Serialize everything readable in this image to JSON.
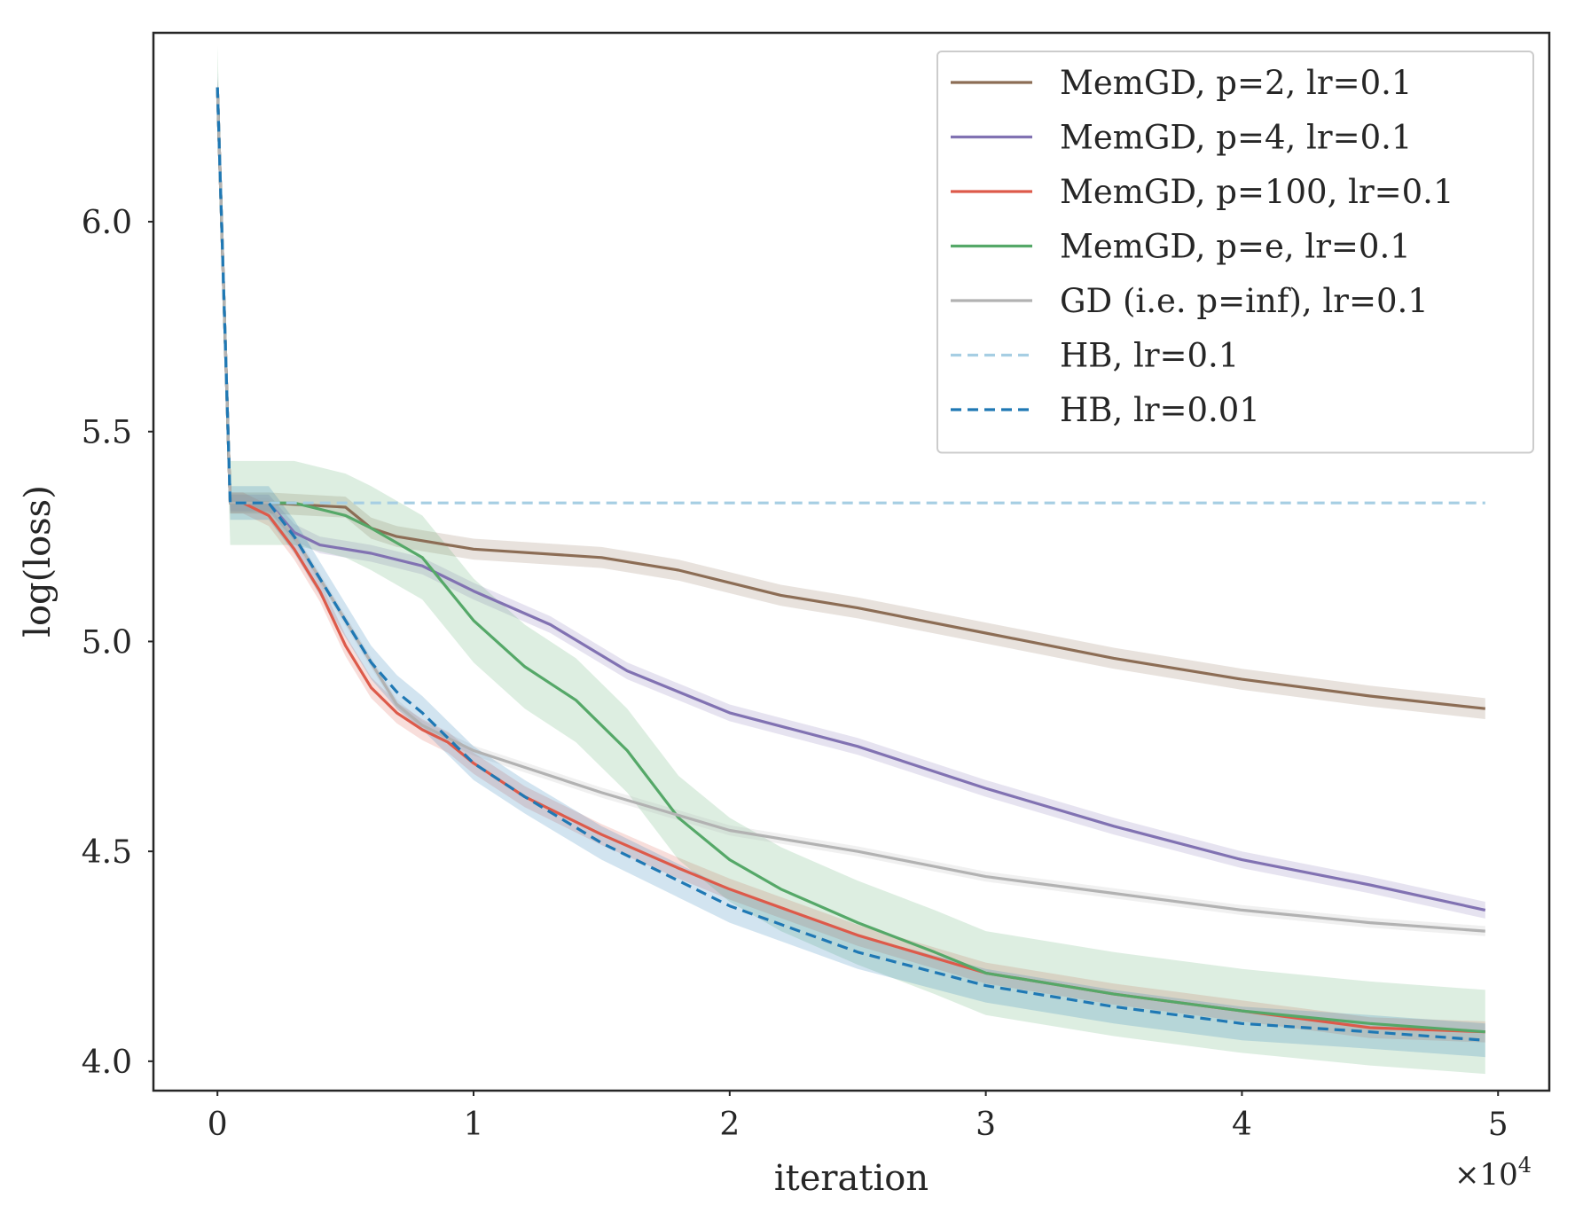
{
  "chart_data": {
    "type": "line",
    "title": "",
    "xlabel": "iteration",
    "ylabel": "log(loss)",
    "x_multiplier": "×10",
    "x_multiplier_exp": "4",
    "xlim": [
      -0.25,
      5.2
    ],
    "ylim": [
      3.93,
      6.45
    ],
    "x_ticks": [
      0,
      1,
      2,
      3,
      4,
      5
    ],
    "x_tick_labels": [
      "0",
      "1",
      "2",
      "3",
      "4",
      "5"
    ],
    "y_ticks": [
      4.0,
      4.5,
      5.0,
      5.5,
      6.0
    ],
    "y_tick_labels": [
      "4.0",
      "4.5",
      "5.0",
      "5.5",
      "6.0"
    ],
    "grid": false,
    "legend_position": "top-right",
    "series": [
      {
        "name": "MemGD, p=2, lr=0.1",
        "color": "#8c6d55",
        "dash": "solid",
        "band": 0.025,
        "points": [
          [
            0,
            6.32
          ],
          [
            0.05,
            5.33
          ],
          [
            0.2,
            5.33
          ],
          [
            0.5,
            5.32
          ],
          [
            0.6,
            5.27
          ],
          [
            0.7,
            5.25
          ],
          [
            1,
            5.22
          ],
          [
            1.5,
            5.2
          ],
          [
            1.8,
            5.17
          ],
          [
            2,
            5.14
          ],
          [
            2.2,
            5.11
          ],
          [
            2.5,
            5.08
          ],
          [
            3,
            5.02
          ],
          [
            3.5,
            4.96
          ],
          [
            4,
            4.91
          ],
          [
            4.5,
            4.87
          ],
          [
            4.95,
            4.84
          ]
        ]
      },
      {
        "name": "MemGD, p=4, lr=0.1",
        "color": "#8172b2",
        "dash": "solid",
        "band": 0.02,
        "points": [
          [
            0,
            6.32
          ],
          [
            0.05,
            5.33
          ],
          [
            0.2,
            5.33
          ],
          [
            0.3,
            5.26
          ],
          [
            0.4,
            5.23
          ],
          [
            0.6,
            5.21
          ],
          [
            0.8,
            5.18
          ],
          [
            1,
            5.12
          ],
          [
            1.3,
            5.04
          ],
          [
            1.6,
            4.93
          ],
          [
            2,
            4.83
          ],
          [
            2.5,
            4.75
          ],
          [
            3,
            4.65
          ],
          [
            3.5,
            4.56
          ],
          [
            4,
            4.48
          ],
          [
            4.5,
            4.42
          ],
          [
            4.95,
            4.36
          ]
        ]
      },
      {
        "name": "MemGD, p=100, lr=0.1",
        "color": "#dd5a4a",
        "dash": "solid",
        "band": 0.025,
        "points": [
          [
            0,
            6.32
          ],
          [
            0.05,
            5.33
          ],
          [
            0.1,
            5.33
          ],
          [
            0.2,
            5.3
          ],
          [
            0.3,
            5.22
          ],
          [
            0.4,
            5.12
          ],
          [
            0.5,
            4.99
          ],
          [
            0.6,
            4.89
          ],
          [
            0.7,
            4.83
          ],
          [
            0.8,
            4.79
          ],
          [
            0.9,
            4.76
          ],
          [
            1,
            4.71
          ],
          [
            1.2,
            4.63
          ],
          [
            1.5,
            4.54
          ],
          [
            1.8,
            4.46
          ],
          [
            2,
            4.41
          ],
          [
            2.5,
            4.3
          ],
          [
            3,
            4.21
          ],
          [
            3.5,
            4.16
          ],
          [
            4,
            4.12
          ],
          [
            4.5,
            4.08
          ],
          [
            4.95,
            4.07
          ]
        ]
      },
      {
        "name": "MemGD, p=e, lr=0.1",
        "color": "#55a868",
        "dash": "solid",
        "band": 0.1,
        "points": [
          [
            0,
            6.32
          ],
          [
            0.05,
            5.33
          ],
          [
            0.3,
            5.33
          ],
          [
            0.5,
            5.3
          ],
          [
            0.6,
            5.27
          ],
          [
            0.8,
            5.2
          ],
          [
            1,
            5.05
          ],
          [
            1.2,
            4.94
          ],
          [
            1.4,
            4.86
          ],
          [
            1.6,
            4.74
          ],
          [
            1.8,
            4.58
          ],
          [
            2,
            4.48
          ],
          [
            2.2,
            4.41
          ],
          [
            2.5,
            4.33
          ],
          [
            2.8,
            4.26
          ],
          [
            3,
            4.21
          ],
          [
            3.5,
            4.16
          ],
          [
            4,
            4.12
          ],
          [
            4.5,
            4.09
          ],
          [
            4.95,
            4.07
          ]
        ]
      },
      {
        "name": "GD (i.e. p=inf), lr=0.1",
        "color": "#b2b2b2",
        "dash": "solid",
        "band": 0.012,
        "points": [
          [
            0,
            6.32
          ],
          [
            0.05,
            5.33
          ],
          [
            0.2,
            5.33
          ],
          [
            0.3,
            5.25
          ],
          [
            0.5,
            5.05
          ],
          [
            0.7,
            4.85
          ],
          [
            0.8,
            4.8
          ],
          [
            1,
            4.74
          ],
          [
            1.5,
            4.64
          ],
          [
            2,
            4.55
          ],
          [
            2.5,
            4.5
          ],
          [
            3,
            4.44
          ],
          [
            3.5,
            4.4
          ],
          [
            4,
            4.36
          ],
          [
            4.5,
            4.33
          ],
          [
            4.95,
            4.31
          ]
        ]
      },
      {
        "name": "HB, lr=0.1",
        "color": "#a6cee3",
        "dash": "dashed",
        "band": 0,
        "points": [
          [
            0,
            6.32
          ],
          [
            0.05,
            5.33
          ],
          [
            4.95,
            5.33
          ]
        ]
      },
      {
        "name": "HB, lr=0.01",
        "color": "#1f78b4",
        "dash": "dashed",
        "band": 0.04,
        "points": [
          [
            0,
            6.32
          ],
          [
            0.05,
            5.33
          ],
          [
            0.2,
            5.33
          ],
          [
            0.3,
            5.25
          ],
          [
            0.5,
            5.05
          ],
          [
            0.6,
            4.95
          ],
          [
            0.7,
            4.88
          ],
          [
            0.8,
            4.83
          ],
          [
            1,
            4.71
          ],
          [
            1.2,
            4.63
          ],
          [
            1.5,
            4.52
          ],
          [
            1.8,
            4.43
          ],
          [
            2,
            4.37
          ],
          [
            2.5,
            4.26
          ],
          [
            3,
            4.18
          ],
          [
            3.5,
            4.13
          ],
          [
            4,
            4.09
          ],
          [
            4.5,
            4.07
          ],
          [
            4.95,
            4.05
          ]
        ]
      }
    ]
  }
}
